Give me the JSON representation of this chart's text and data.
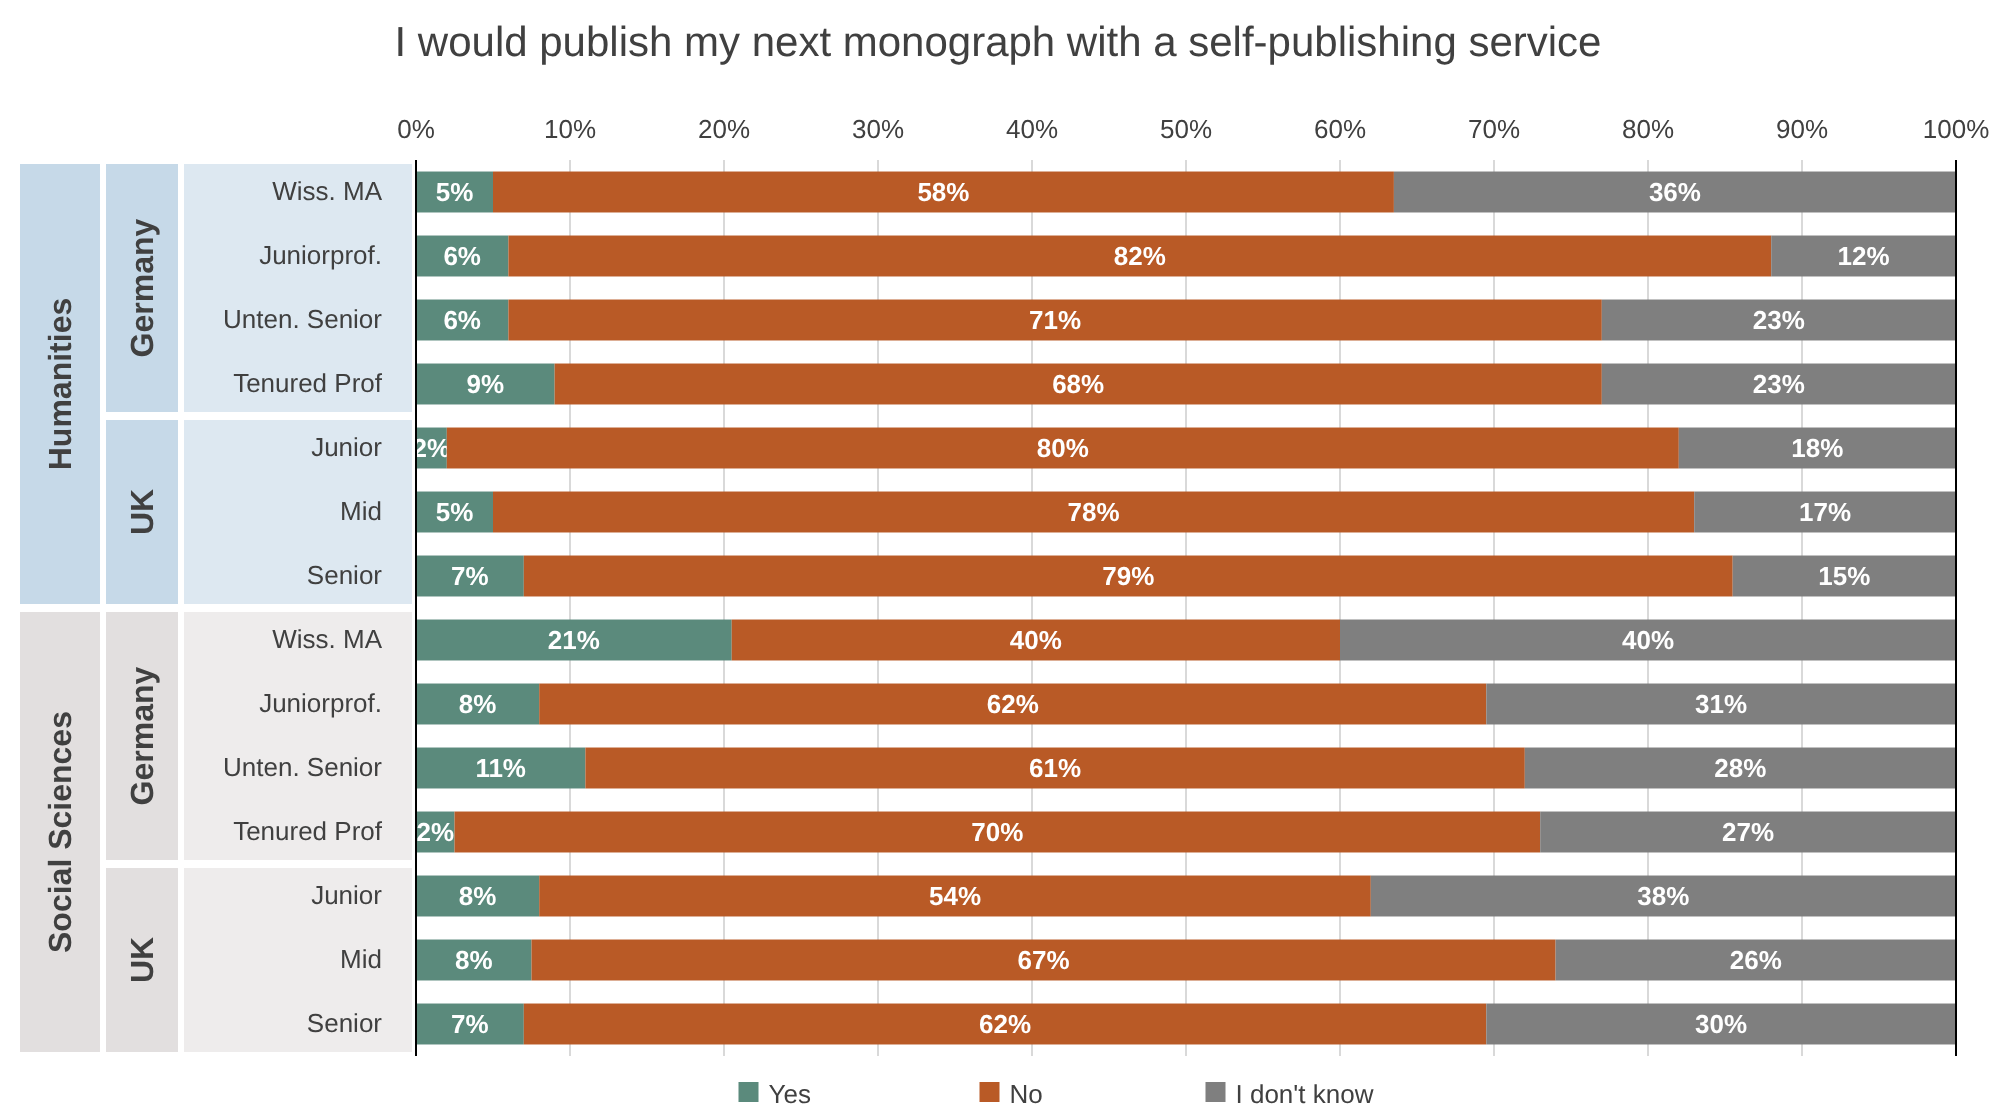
{
  "chart_data": {
    "type": "bar",
    "orientation": "horizontal",
    "stacked": true,
    "title": "I would publish my next monograph with a self-publishing service",
    "categories": [
      "Wiss. MA",
      "Juniorprof.",
      "Unten. Senior",
      "Tenured Prof",
      "Junior",
      "Mid",
      "Senior",
      "Wiss. MA",
      "Juniorprof.",
      "Unten. Senior",
      "Tenured Prof",
      "Junior",
      "Mid",
      "Senior"
    ],
    "series": [
      {
        "name": "Yes",
        "color": "#5b8a7c",
        "values": [
          5,
          6,
          6,
          9,
          2,
          5,
          7,
          20.5,
          8,
          11,
          2.5,
          8,
          7.5,
          7
        ],
        "value_labels": [
          "5%",
          "6%",
          "6%",
          "9%",
          "2%",
          "5%",
          "7%",
          "21%",
          "8%",
          "11%",
          "2%",
          "8%",
          "8%",
          "7%"
        ]
      },
      {
        "name": "No",
        "color": "#b95a26",
        "values": [
          58.5,
          82,
          71,
          68,
          80,
          78,
          78.5,
          39.5,
          61.5,
          61,
          70.5,
          54,
          66.5,
          62.5
        ],
        "value_labels": [
          "58%",
          "82%",
          "71%",
          "68%",
          "80%",
          "78%",
          "79%",
          "40%",
          "62%",
          "61%",
          "70%",
          "54%",
          "67%",
          "62%"
        ]
      },
      {
        "name": "I don't know",
        "color": "#7f7f7f",
        "values": [
          36.5,
          12,
          23,
          23,
          18,
          17,
          14.5,
          40,
          30.5,
          28,
          27,
          38,
          26,
          30.5
        ],
        "value_labels": [
          "36%",
          "12%",
          "23%",
          "23%",
          "18%",
          "17%",
          "15%",
          "40%",
          "31%",
          "28%",
          "27%",
          "38%",
          "26%",
          "30%"
        ]
      }
    ],
    "xlim": [
      0,
      100
    ],
    "xticks": [
      {
        "value": 0,
        "label": "0%"
      },
      {
        "value": 10,
        "label": "10%"
      },
      {
        "value": 20,
        "label": "20%"
      },
      {
        "value": 30,
        "label": "30%"
      },
      {
        "value": 40,
        "label": "40%"
      },
      {
        "value": 50,
        "label": "50%"
      },
      {
        "value": 60,
        "label": "60%"
      },
      {
        "value": 70,
        "label": "70%"
      },
      {
        "value": 80,
        "label": "80%"
      },
      {
        "value": 90,
        "label": "90%"
      },
      {
        "value": 100,
        "label": "100%"
      }
    ],
    "annotations": [
      "Humanities",
      "Germany",
      "UK",
      "Social Sciences",
      "Germany",
      "UK"
    ],
    "grid": "x",
    "legend": "bottom"
  }
}
